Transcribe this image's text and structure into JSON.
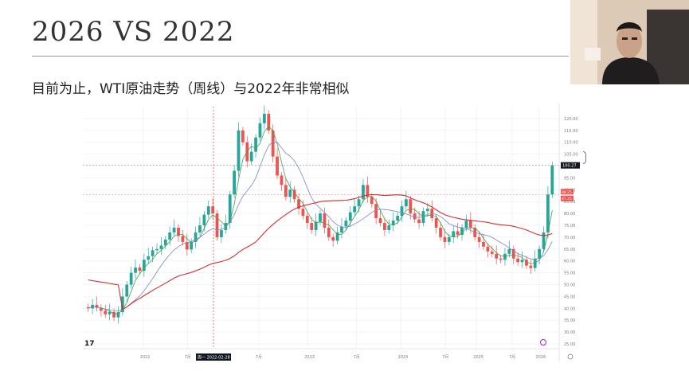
{
  "slide": {
    "title": "2026 VS 2022",
    "subtitle": "目前为止，WTI原油走势（周线）与2022年非常相似"
  },
  "colors": {
    "up": "#26a69a",
    "down": "#ef5350",
    "ma_red": "#d32f2f",
    "ma_blue": "#7986cb",
    "ma_green": "#43a047",
    "price_badge": "#131722"
  },
  "chart_data": {
    "type": "candlestick",
    "y_ticks": [
      "120.00",
      "115.00",
      "110.00",
      "105.00",
      "100.00",
      "95.00",
      "90.00",
      "85.00",
      "80.00",
      "75.00",
      "70.00",
      "65.00",
      "60.00",
      "55.00",
      "50.00",
      "45.00",
      "40.00",
      "35.00",
      "30.00",
      "25.00"
    ],
    "ylim": [
      23,
      125
    ],
    "x_ticks": [
      "2021",
      "7月",
      "7月",
      "2023",
      "7月",
      "2024",
      "7月",
      "2025",
      "7月",
      "2026"
    ],
    "x_highlight_label": "周一 2022-02-28",
    "price_labels": {
      "last": "100.27",
      "red1": "88.25",
      "red2": "87.25"
    },
    "logo": "17",
    "series_close": [
      40.0,
      41.5,
      40.2,
      39.0,
      37.5,
      38.5,
      36.2,
      38.4,
      45.0,
      50.0,
      55.0,
      57.2,
      55.8,
      60.5,
      62.0,
      64.5,
      65.0,
      66.5,
      69.0,
      72.0,
      74.0,
      70.5,
      68.0,
      64.8,
      68.0,
      72.0,
      75.0,
      79.5,
      83.0,
      80.0,
      70.0,
      73.0,
      76.0,
      88.0,
      98.0,
      115.0,
      110.0,
      102.0,
      106.0,
      112.0,
      118.0,
      122.0,
      115.0,
      104.0,
      96.0,
      92.0,
      87.0,
      90.0,
      86.0,
      82.0,
      79.0,
      76.0,
      73.0,
      76.5,
      80.0,
      74.0,
      70.0,
      68.5,
      72.0,
      74.5,
      77.0,
      80.5,
      83.0,
      86.0,
      92.0,
      87.0,
      84.0,
      78.0,
      76.0,
      73.0,
      75.0,
      77.0,
      79.0,
      83.0,
      86.0,
      80.0,
      77.5,
      76.0,
      81.0,
      82.0,
      78.0,
      74.0,
      70.0,
      68.0,
      70.0,
      72.5,
      71.0,
      74.0,
      77.0,
      74.0,
      70.0,
      68.0,
      66.0,
      64.0,
      63.0,
      61.0,
      60.5,
      63.0,
      65.0,
      61.0,
      59.5,
      60.5,
      58.0,
      57.0,
      61.0,
      65.0,
      72.0,
      88.0,
      100.27
    ]
  }
}
